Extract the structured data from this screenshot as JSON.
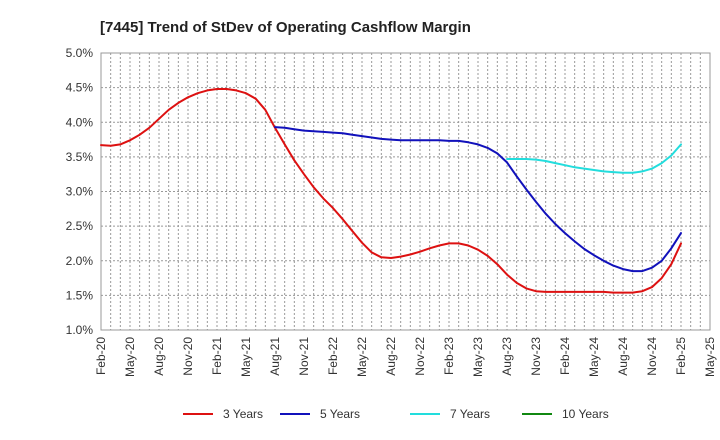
{
  "chart_data": {
    "type": "line",
    "title": "[7445]  Trend of StDev of Operating Cashflow Margin",
    "xlabel": "",
    "ylabel": "",
    "x_ticks": [
      "Feb-20",
      "May-20",
      "Aug-20",
      "Nov-20",
      "Feb-21",
      "May-21",
      "Aug-21",
      "Nov-21",
      "Feb-22",
      "May-22",
      "Aug-22",
      "Nov-22",
      "Feb-23",
      "May-23",
      "Aug-23",
      "Nov-23",
      "Feb-24",
      "May-24",
      "Aug-24",
      "Nov-24",
      "Feb-25",
      "May-25"
    ],
    "y_ticks": [
      "1.0%",
      "1.5%",
      "2.0%",
      "2.5%",
      "3.0%",
      "3.5%",
      "4.0%",
      "4.5%",
      "5.0%"
    ],
    "ylim": [
      1.0,
      5.0
    ],
    "grid": true,
    "legend_position": "bottom",
    "series": [
      {
        "name": "3 Years",
        "color": "#dd1111",
        "x": [
          "Feb-20",
          "Mar-20",
          "Apr-20",
          "May-20",
          "Jun-20",
          "Jul-20",
          "Aug-20",
          "Sep-20",
          "Oct-20",
          "Nov-20",
          "Dec-20",
          "Jan-21",
          "Feb-21",
          "Mar-21",
          "Apr-21",
          "May-21",
          "Jun-21",
          "Jul-21",
          "Aug-21",
          "Sep-21",
          "Oct-21",
          "Nov-21",
          "Dec-21",
          "Jan-22",
          "Feb-22",
          "Mar-22",
          "Apr-22",
          "May-22",
          "Jun-22",
          "Jul-22",
          "Aug-22",
          "Sep-22",
          "Oct-22",
          "Nov-22",
          "Dec-22",
          "Jan-23",
          "Feb-23",
          "Mar-23",
          "Apr-23",
          "May-23",
          "Jun-23",
          "Jul-23",
          "Aug-23",
          "Sep-23",
          "Oct-23",
          "Nov-23",
          "Dec-23",
          "Jan-24",
          "Feb-24",
          "Mar-24",
          "Apr-24",
          "May-24",
          "Jun-24",
          "Jul-24",
          "Aug-24",
          "Sep-24",
          "Oct-24",
          "Nov-24",
          "Dec-24",
          "Jan-25",
          "Feb-25"
        ],
        "values": [
          3.67,
          3.66,
          3.68,
          3.74,
          3.82,
          3.92,
          4.05,
          4.18,
          4.28,
          4.36,
          4.42,
          4.46,
          4.48,
          4.48,
          4.46,
          4.42,
          4.34,
          4.18,
          3.92,
          3.68,
          3.45,
          3.25,
          3.06,
          2.9,
          2.76,
          2.6,
          2.43,
          2.26,
          2.12,
          2.05,
          2.04,
          2.06,
          2.09,
          2.13,
          2.18,
          2.22,
          2.25,
          2.25,
          2.22,
          2.16,
          2.07,
          1.95,
          1.8,
          1.68,
          1.6,
          1.56,
          1.55,
          1.55,
          1.55,
          1.55,
          1.55,
          1.55,
          1.55,
          1.54,
          1.54,
          1.54,
          1.56,
          1.62,
          1.75,
          1.95,
          2.25
        ]
      },
      {
        "name": "5 Years",
        "color": "#1111bb",
        "x": [
          "Feb-21",
          "Mar-21",
          "Apr-21",
          "May-21",
          "Jun-21",
          "Jul-21",
          "Aug-21",
          "Sep-21",
          "Oct-21",
          "Nov-21",
          "Dec-21",
          "Jan-22",
          "Feb-22",
          "Mar-22",
          "Apr-22",
          "May-22",
          "Jun-22",
          "Jul-22",
          "Aug-22",
          "Sep-22",
          "Oct-22",
          "Nov-22",
          "Dec-22",
          "Jan-23",
          "Feb-23",
          "Mar-23",
          "Apr-23",
          "May-23",
          "Jun-23",
          "Jul-23",
          "Aug-23",
          "Sep-23",
          "Oct-23",
          "Nov-23",
          "Dec-23",
          "Jan-24",
          "Feb-24",
          "Mar-24",
          "Apr-24",
          "May-24",
          "Jun-24",
          "Jul-24",
          "Aug-24",
          "Sep-24",
          "Oct-24",
          "Nov-24",
          "Dec-24",
          "Jan-25",
          "Feb-25"
        ],
        "values": [
          null,
          null,
          null,
          null,
          null,
          null,
          3.93,
          3.92,
          3.9,
          3.88,
          3.87,
          3.86,
          3.85,
          3.84,
          3.82,
          3.8,
          3.78,
          3.76,
          3.75,
          3.74,
          3.74,
          3.74,
          3.74,
          3.74,
          3.73,
          3.73,
          3.71,
          3.68,
          3.63,
          3.55,
          3.42,
          3.22,
          3.03,
          2.85,
          2.68,
          2.53,
          2.4,
          2.28,
          2.17,
          2.08,
          2.0,
          1.93,
          1.88,
          1.85,
          1.85,
          1.9,
          2.0,
          2.18,
          2.4
        ]
      },
      {
        "name": "7 Years",
        "color": "#22dddd",
        "x": [
          "Aug-23",
          "Sep-23",
          "Oct-23",
          "Nov-23",
          "Dec-23",
          "Jan-24",
          "Feb-24",
          "Mar-24",
          "Apr-24",
          "May-24",
          "Jun-24",
          "Jul-24",
          "Aug-24",
          "Sep-24",
          "Oct-24",
          "Nov-24",
          "Dec-24",
          "Jan-25",
          "Feb-25"
        ],
        "values": [
          3.47,
          3.47,
          3.47,
          3.46,
          3.44,
          3.41,
          3.38,
          3.35,
          3.33,
          3.31,
          3.29,
          3.28,
          3.27,
          3.27,
          3.29,
          3.33,
          3.41,
          3.52,
          3.68
        ]
      },
      {
        "name": "10 Years",
        "color": "#118811",
        "x": [],
        "values": []
      }
    ]
  }
}
